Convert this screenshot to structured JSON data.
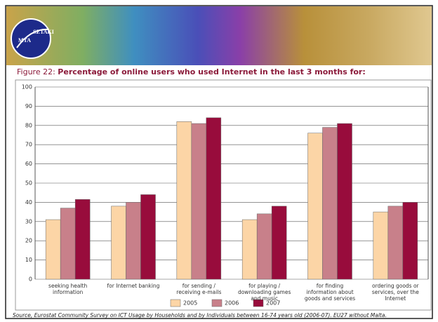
{
  "banner": {
    "logo": [
      "MTA",
      "SZTAKI"
    ]
  },
  "chart_data": {
    "type": "bar",
    "figure_label": "Figure 22:",
    "title": "Percentage of online users who used Internet in the last 3 months for:",
    "categories": [
      "seeking health information",
      "for Internet banking",
      "for sending / receiving e-mails",
      "for playing / downloading games and music",
      "for finding information about goods and services",
      "ordering goods or services, over the Internet"
    ],
    "series": [
      {
        "name": "2005",
        "color": "#fcd5a6",
        "values": [
          31,
          38,
          82,
          31,
          76,
          35
        ]
      },
      {
        "name": "2006",
        "color": "#c8808a",
        "values": [
          37,
          40,
          81,
          34,
          79,
          38
        ]
      },
      {
        "name": "2007",
        "color": "#980c3c",
        "values": [
          41.5,
          44,
          84,
          38,
          81,
          40
        ]
      }
    ],
    "ylim": [
      0,
      100
    ],
    "yticks": [
      0,
      10,
      20,
      30,
      40,
      50,
      60,
      70,
      80,
      90,
      100
    ],
    "grid": true,
    "legend": "bottom",
    "source": "Source, Eurostat Community Survey on ICT Usage by Households and by Individuals between 16-74 years old (2006-07). EU27 without Malta."
  }
}
